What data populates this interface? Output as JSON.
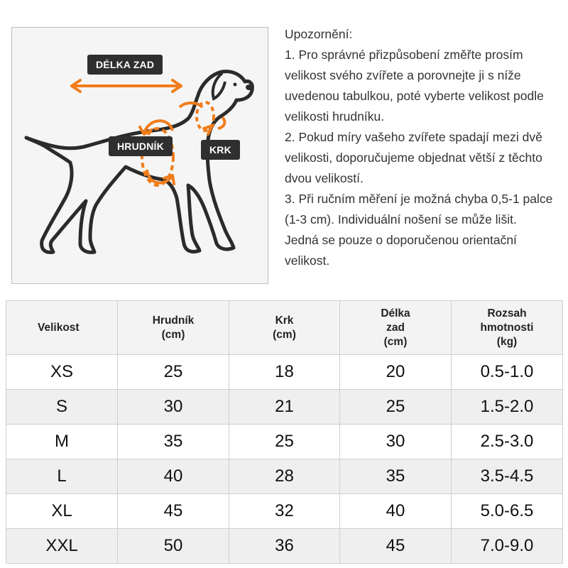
{
  "diagram": {
    "labels": {
      "back_length": "DÉLKA ZAD",
      "chest": "HRUDNÍK",
      "neck": "KRK"
    },
    "accent_color": "#f07d1a",
    "tag_color": "#2f2f2f"
  },
  "notes": {
    "heading": "Upozornění:",
    "lines": [
      "1. Pro správné přizpůsobení změřte prosím velikost svého zvířete a porovnejte ji s níže uvedenou tabulkou, poté vyberte velikost podle velikosti hrudníku.",
      "2. Pokud míry vašeho zvířete spadají mezi dvě velikosti, doporučujeme objednat větší z těchto dvou velikostí.",
      "3. Při ručním měření je možná chyba 0,5-1 palce (1-3 cm). Individuální nošení se může lišit.",
      "Jedná se pouze o doporučenou orientační velikost."
    ]
  },
  "size_table": {
    "headers": [
      "Velikost",
      "Hrudník\n(cm)",
      "Krk\n(cm)",
      "Délka\nzad\n(cm)",
      "Rozsah\nhmotnosti\n(kg)"
    ],
    "rows": [
      [
        "XS",
        "25",
        "18",
        "20",
        "0.5-1.0"
      ],
      [
        "S",
        "30",
        "21",
        "25",
        "1.5-2.0"
      ],
      [
        "M",
        "35",
        "25",
        "30",
        "2.5-3.0"
      ],
      [
        "L",
        "40",
        "28",
        "35",
        "3.5-4.5"
      ],
      [
        "XL",
        "45",
        "32",
        "40",
        "5.0-6.5"
      ],
      [
        "XXL",
        "50",
        "36",
        "45",
        "7.0-9.0"
      ]
    ]
  }
}
